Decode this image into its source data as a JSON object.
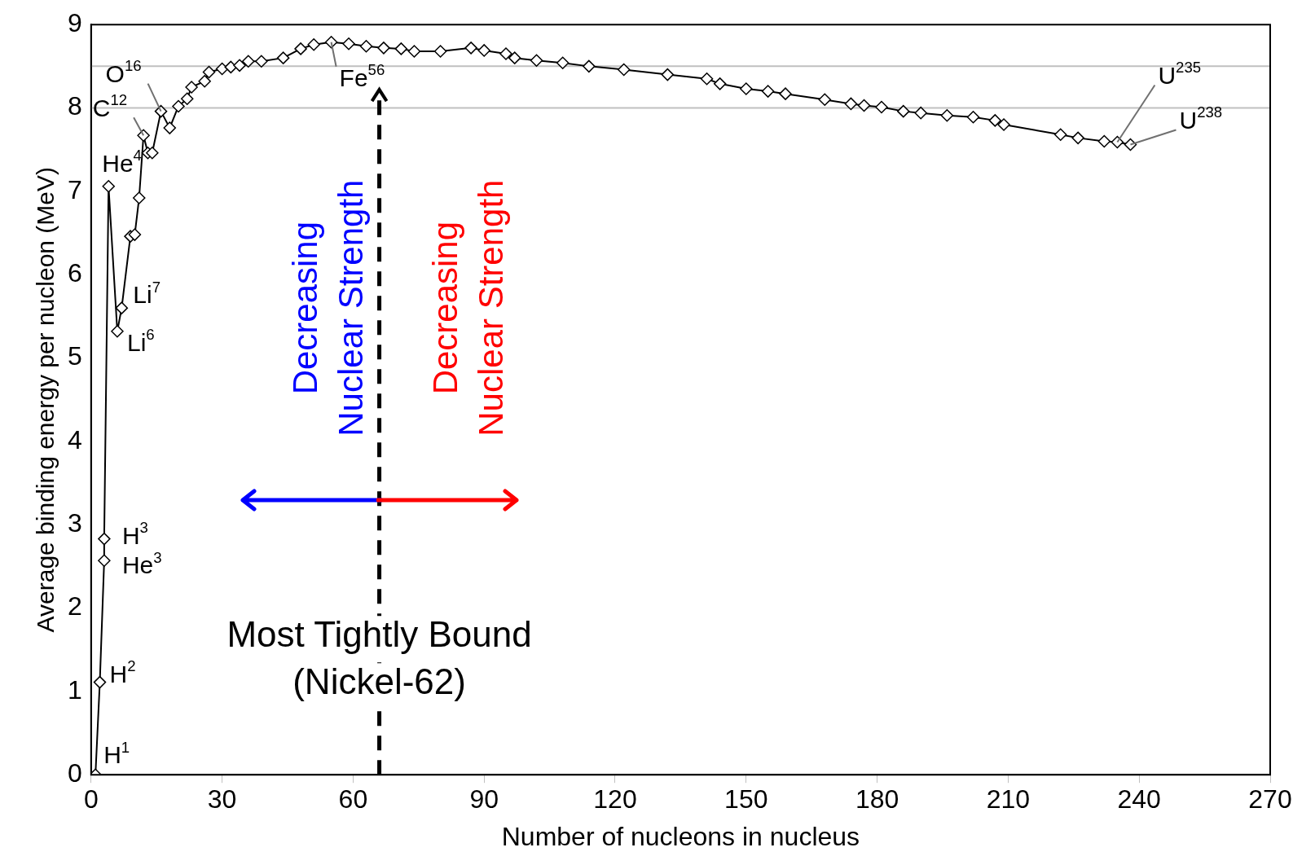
{
  "chart_data": {
    "type": "line",
    "xlabel": "Number of nucleons in nucleus",
    "ylabel": "Average binding energy per nucleon (MeV)",
    "x": [
      1,
      2,
      3,
      3,
      4,
      6,
      7,
      9,
      10,
      11,
      12,
      13,
      14,
      16,
      18,
      20,
      22,
      23,
      26,
      27,
      30,
      32,
      34,
      36,
      39,
      44,
      48,
      51,
      55,
      59,
      63,
      67,
      71,
      74,
      80,
      87,
      90,
      95,
      97,
      102,
      108,
      114,
      122,
      132,
      141,
      144,
      150,
      155,
      159,
      168,
      174,
      177,
      181,
      186,
      190,
      196,
      202,
      207,
      209,
      222,
      226,
      232,
      235,
      238
    ],
    "values": [
      0,
      1.11,
      2.57,
      2.83,
      7.06,
      5.32,
      5.6,
      6.46,
      6.48,
      6.92,
      7.67,
      7.46,
      7.46,
      7.96,
      7.76,
      8.02,
      8.11,
      8.25,
      8.32,
      8.43,
      8.47,
      8.49,
      8.51,
      8.56,
      8.56,
      8.6,
      8.71,
      8.76,
      8.79,
      8.77,
      8.74,
      8.72,
      8.71,
      8.68,
      8.68,
      8.72,
      8.69,
      8.65,
      8.6,
      8.57,
      8.54,
      8.5,
      8.46,
      8.4,
      8.35,
      8.29,
      8.23,
      8.2,
      8.17,
      8.1,
      8.05,
      8.03,
      8.01,
      7.96,
      7.94,
      7.91,
      7.89,
      7.85,
      7.8,
      7.68,
      7.64,
      7.6,
      7.59,
      7.56
    ],
    "color": "#000000",
    "marker": "diamond",
    "line_style": "solid",
    "xlim": [
      0,
      270
    ],
    "xticks": [
      0,
      30,
      60,
      90,
      120,
      150,
      180,
      210,
      240,
      270
    ],
    "ylim": [
      0,
      9
    ],
    "yticks": [
      0,
      1,
      2,
      3,
      4,
      5,
      6,
      7,
      8,
      9
    ],
    "legend": false,
    "ref_lines": [
      {
        "axis": "y",
        "value": 8,
        "color": "#c0c0c0"
      },
      {
        "axis": "y",
        "value": 8.5,
        "color": "#c0c0c0"
      },
      {
        "axis": "x",
        "value": 66,
        "label": "Most Tightly Bound\n(Nickel-62)",
        "color": "#000000",
        "line_style": "dashed"
      }
    ],
    "annotations": [
      {
        "text": "H$^{1}$",
        "x": 1,
        "y": 0
      },
      {
        "text": "H$^{2}$",
        "x": 2,
        "y": 1.11
      },
      {
        "text": "He$^{3}$",
        "x": 3,
        "y": 2.57
      },
      {
        "text": "H$^{3}$",
        "x": 3,
        "y": 2.83
      },
      {
        "text": "He$^{4}$",
        "x": 4,
        "y": 7.06
      },
      {
        "text": "Li$^{6}$",
        "x": 6,
        "y": 5.32
      },
      {
        "text": "Li$^{7}$",
        "x": 7,
        "y": 5.6
      },
      {
        "text": "C$^{12}$",
        "x": 12,
        "y": 7.67
      },
      {
        "text": "O$^{16}$",
        "x": 16,
        "y": 7.96
      },
      {
        "text": "Fe$^{56}$",
        "x": 55,
        "y": 8.79
      },
      {
        "text": "U$^{235}$",
        "x": 235,
        "y": 7.59
      },
      {
        "text": "U$^{238}$",
        "x": 238,
        "y": 7.56
      },
      "Decreasing\nNuclear Strength",
      "Decreasing\nNuclear Strength"
    ]
  }
}
